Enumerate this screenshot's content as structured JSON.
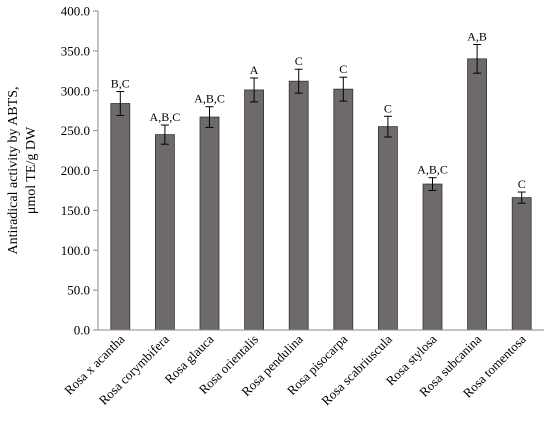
{
  "chart_data": {
    "type": "bar",
    "title": "",
    "ylabel_lines": [
      "Antiradical activity by ABTS,",
      "μmol TE/g DW"
    ],
    "xlabel": "",
    "ylim": [
      0,
      400
    ],
    "yticks": [
      "0.0",
      "50.0",
      "100.0",
      "150.0",
      "200.0",
      "250.0",
      "300.0",
      "350.0",
      "400.0"
    ],
    "grid": false,
    "bar_color": "#6e6a6a",
    "categories": [
      "Rosa x acantha",
      "Rosa corymbifera",
      "Rosa glauca",
      "Rosa orientalis",
      "Rosa pendulina",
      "Rosa pisocarpa",
      "Rosa scabriuscula",
      "Rosa stylosa",
      "Rosa subcanina",
      "Rosa tomentosa"
    ],
    "values": [
      284,
      245,
      267,
      301,
      312,
      302,
      255,
      183,
      340,
      166
    ],
    "errors": [
      15,
      12,
      13,
      15,
      15,
      15,
      13,
      8,
      18,
      7
    ],
    "annotations": [
      "B,C",
      "A,B,C",
      "A,B,C",
      "A",
      "C",
      "C",
      "C",
      "A,B,C",
      "A,B",
      "C"
    ]
  }
}
